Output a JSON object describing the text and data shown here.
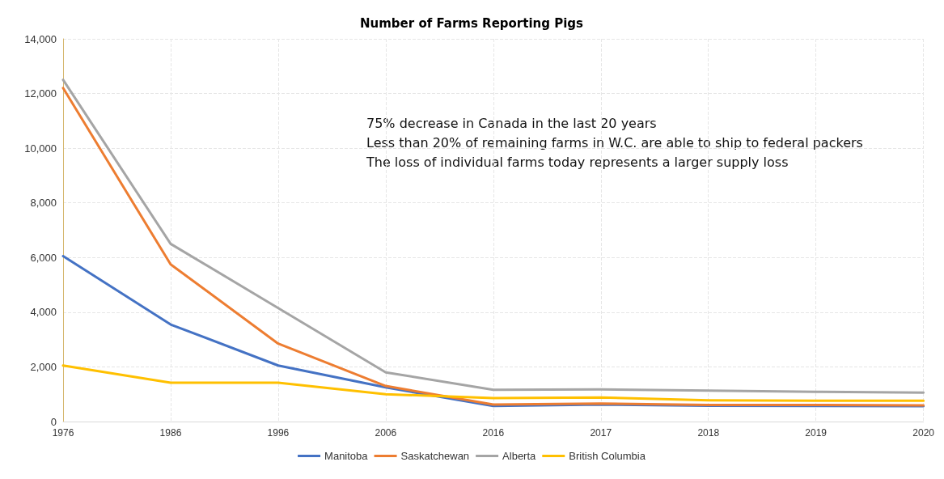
{
  "chart_data": {
    "type": "line",
    "title": "Number of Farms Reporting Pigs",
    "categories": [
      "1976",
      "1986",
      "1996",
      "2006",
      "2016",
      "2017",
      "2018",
      "2019",
      "2020"
    ],
    "series": [
      {
        "name": "Manitoba",
        "color": "#4472c4",
        "values": [
          6050,
          3550,
          2050,
          1250,
          570,
          620,
          580,
          570,
          560
        ]
      },
      {
        "name": "Saskatchewan",
        "color": "#ed7d31",
        "values": [
          12200,
          5750,
          2850,
          1300,
          620,
          660,
          610,
          610,
          590
        ]
      },
      {
        "name": "Alberta",
        "color": "#a5a5a5",
        "values": [
          12500,
          6500,
          4150,
          1800,
          1160,
          1180,
          1130,
          1090,
          1060
        ]
      },
      {
        "name": "British Columbia",
        "color": "#ffc000",
        "values": [
          2050,
          1420,
          1420,
          1000,
          860,
          880,
          780,
          760,
          760
        ]
      }
    ],
    "ylim": [
      0,
      14000
    ],
    "yticks": [
      0,
      {
        "value": 2000,
        "label": "2,000"
      },
      {
        "value": 4000,
        "label": "4,000"
      },
      {
        "value": 6000,
        "label": "6,000"
      },
      {
        "value": 8000,
        "label": "8,000"
      },
      {
        "value": 10000,
        "label": "10,000"
      },
      {
        "value": 12000,
        "label": "12,000"
      },
      {
        "value": 14000,
        "label": "14,000"
      }
    ],
    "grid": true,
    "legend": "bottom",
    "marker": "none",
    "line_style": "solid",
    "annotations": [
      "75% decrease in Canada in the last 20 years",
      "Less than 20% of remaining farms in W.C. are able to ship to federal packers",
      "The loss of individual farms today represents a larger supply loss"
    ]
  }
}
